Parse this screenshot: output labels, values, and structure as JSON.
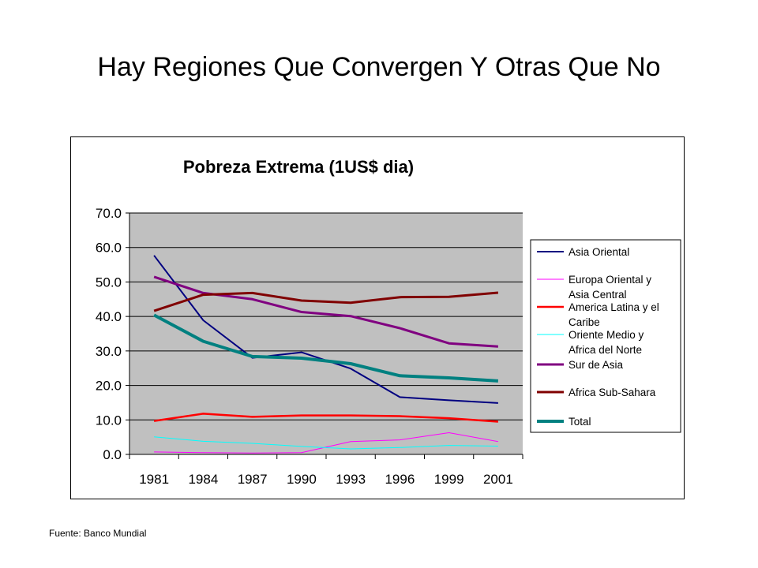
{
  "slide": {
    "title": "Hay Regiones Que Convergen Y Otras Que No",
    "source": "Fuente: Banco Mundial"
  },
  "chart_data": {
    "type": "line",
    "title": "Pobreza Extrema (1US$ dia)",
    "xlabel": "",
    "ylabel": "",
    "categories": [
      "1981",
      "1984",
      "1987",
      "1990",
      "1993",
      "1996",
      "1999",
      "2001"
    ],
    "ylim": [
      0,
      70
    ],
    "yticks": [
      "0.0",
      "10.0",
      "20.0",
      "30.0",
      "40.0",
      "50.0",
      "60.0",
      "70.0"
    ],
    "grid": true,
    "plot_background": "#C0C0C0",
    "legend_position": "right",
    "series": [
      {
        "name": "Asia Oriental",
        "color": "#000080",
        "values": [
          57.7,
          38.9,
          28.0,
          29.6,
          24.9,
          16.6,
          15.7,
          14.9
        ]
      },
      {
        "name": "Europa Oriental y Asia Central",
        "color": "#FF00FF",
        "values": [
          0.7,
          0.5,
          0.4,
          0.5,
          3.7,
          4.2,
          6.3,
          3.7
        ]
      },
      {
        "name": "America Latina y el Caribe",
        "color": "#FF0000",
        "values": [
          9.7,
          11.8,
          10.9,
          11.3,
          11.3,
          11.1,
          10.5,
          9.5
        ]
      },
      {
        "name": "Oriente Medio y Africa del Norte",
        "color": "#00FFFF",
        "values": [
          5.1,
          3.8,
          3.2,
          2.3,
          1.6,
          2.0,
          2.6,
          2.4
        ]
      },
      {
        "name": "Sur de Asia",
        "color": "#800080",
        "values": [
          51.5,
          46.8,
          45.0,
          41.3,
          40.1,
          36.6,
          32.2,
          31.3
        ]
      },
      {
        "name": "Africa Sub-Sahara",
        "color": "#800000",
        "values": [
          41.6,
          46.3,
          46.8,
          44.6,
          44.0,
          45.6,
          45.7,
          46.9
        ]
      },
      {
        "name": "Total",
        "color": "#008080",
        "values": [
          40.4,
          32.8,
          28.4,
          27.9,
          26.3,
          22.8,
          22.2,
          21.3
        ]
      }
    ],
    "legend_labels": [
      [
        "Asia Oriental"
      ],
      [
        "Europa Oriental y",
        "Asia Central"
      ],
      [
        "America Latina y el",
        "Caribe"
      ],
      [
        "Oriente Medio y",
        "Africa del Norte"
      ],
      [
        "Sur de Asia"
      ],
      [
        "Africa Sub-Sahara"
      ],
      [
        "Total"
      ]
    ]
  }
}
